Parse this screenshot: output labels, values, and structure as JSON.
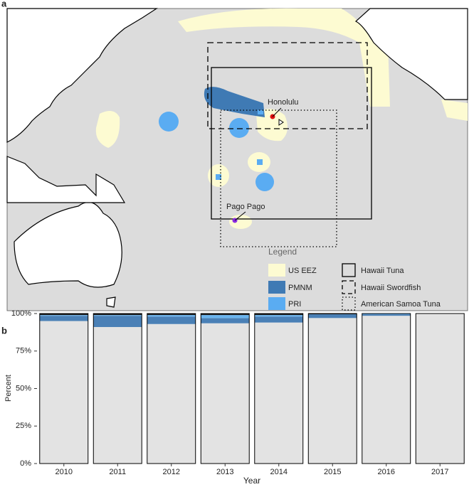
{
  "map": {
    "panel_label": "a",
    "places": [
      "Honolulu",
      "Pago Pago"
    ],
    "legend": {
      "title": "Legend",
      "areas": [
        "US EEZ",
        "PMNM",
        "PRI"
      ],
      "regions": [
        "Hawaii Tuna",
        "Hawaii Swordfish",
        "American Samoa Tuna"
      ]
    }
  },
  "chart_data": {
    "type": "stacked-bar",
    "panel_label": "b",
    "x_label": "Year",
    "y_label": "Percent",
    "categories": [
      "2010",
      "2011",
      "2012",
      "2013",
      "2014",
      "2015",
      "2016",
      "2017"
    ],
    "series": [
      {
        "color": "#e3e3e3",
        "values": [
          95,
          91,
          93,
          93.5,
          94,
          97,
          98.5,
          100
        ]
      },
      {
        "color": "#4a80b6",
        "values": [
          3.5,
          7.5,
          5,
          3.5,
          4,
          2.5,
          1,
          0
        ]
      },
      {
        "color": "#6ab4ef",
        "values": [
          0.5,
          0.5,
          1,
          2,
          1,
          0,
          0.5,
          0
        ]
      },
      {
        "color": "#1a1a1a",
        "values": [
          1,
          1,
          1,
          1,
          1,
          0.5,
          0,
          0
        ]
      }
    ],
    "ylim": [
      0,
      100
    ],
    "yticks": [
      {
        "value": 0,
        "label": "0%"
      },
      {
        "value": 25,
        "label": "25%"
      },
      {
        "value": 50,
        "label": "50%"
      },
      {
        "value": 75,
        "label": "75%"
      },
      {
        "value": 100,
        "label": "100%"
      }
    ]
  }
}
